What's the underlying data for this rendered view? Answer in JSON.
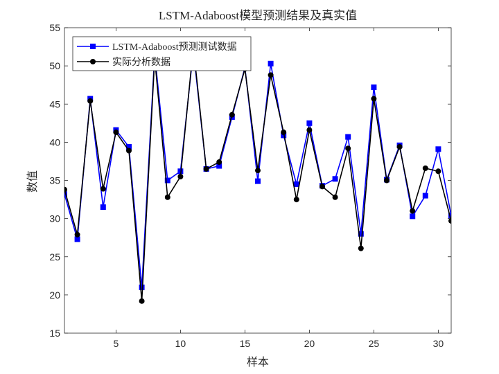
{
  "chart_data": {
    "type": "line",
    "title": "LSTM-Adaboost模型预测结果及真实值",
    "xlabel": "样本",
    "ylabel": "数值",
    "xlim": [
      1,
      31
    ],
    "ylim": [
      15,
      55
    ],
    "xticks": [
      5,
      10,
      15,
      20,
      25,
      30
    ],
    "yticks": [
      15,
      20,
      25,
      30,
      35,
      40,
      45,
      50,
      55
    ],
    "grid": false,
    "legend_position": "upper-left",
    "x": [
      1,
      2,
      3,
      4,
      5,
      6,
      7,
      8,
      9,
      10,
      11,
      12,
      13,
      14,
      15,
      16,
      17,
      18,
      19,
      20,
      21,
      22,
      23,
      24,
      25,
      26,
      27,
      28,
      29,
      30,
      31
    ],
    "series": [
      {
        "name": "LSTM-Adaboost预测测试数据",
        "color": "#0000ff",
        "marker": "square",
        "values": [
          33.2,
          27.3,
          45.7,
          31.5,
          41.6,
          39.4,
          21.0,
          51.5,
          35.0,
          36.2,
          52.0,
          36.5,
          36.9,
          43.3,
          49.8,
          34.9,
          50.3,
          40.9,
          34.5,
          42.5,
          34.3,
          35.2,
          40.7,
          28.0,
          47.2,
          35.1,
          39.6,
          30.3,
          33.0,
          39.1,
          30.4
        ]
      },
      {
        "name": "实际分析数据",
        "color": "#000000",
        "marker": "circle",
        "values": [
          33.8,
          27.9,
          45.4,
          33.9,
          41.3,
          38.9,
          19.2,
          51.0,
          32.8,
          35.5,
          52.5,
          36.5,
          37.4,
          43.6,
          49.6,
          36.3,
          48.8,
          41.3,
          32.5,
          41.6,
          34.2,
          32.8,
          39.2,
          26.1,
          45.7,
          35.0,
          39.4,
          31.0,
          36.6,
          36.2,
          29.7
        ]
      }
    ]
  }
}
